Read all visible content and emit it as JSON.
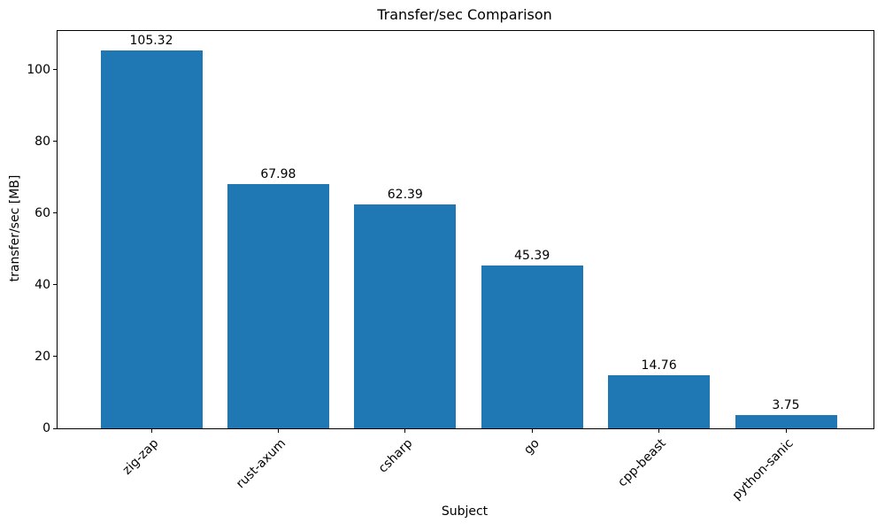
{
  "chart_data": {
    "type": "bar",
    "title": "Transfer/sec Comparison",
    "xlabel": "Subject",
    "ylabel": "transfer/sec [MB]",
    "categories": [
      "zig-zap",
      "rust-axum",
      "csharp",
      "go",
      "cpp-beast",
      "python-sanic"
    ],
    "values": [
      105.32,
      67.98,
      62.39,
      45.39,
      14.76,
      3.75
    ],
    "value_labels": [
      "105.32",
      "67.98",
      "62.39",
      "45.39",
      "14.76",
      "3.75"
    ],
    "series_name": "transfer/sec",
    "bar_color": "#1f77b4",
    "text_color": "#000000",
    "background_color": "#ffffff",
    "ylim": [
      0,
      110.75
    ],
    "yticks": [
      0,
      20,
      40,
      60,
      80,
      100
    ],
    "xtick_rotation_deg": 45,
    "grid": false,
    "legend": "none"
  }
}
